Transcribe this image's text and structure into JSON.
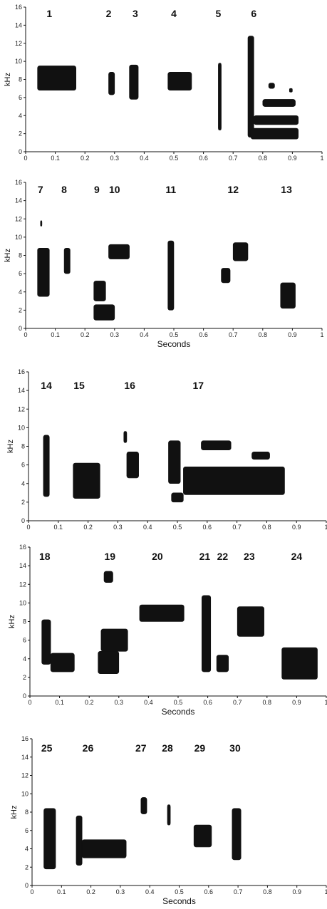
{
  "chart_data": [
    {
      "type": "spectrogram",
      "ylabel": "kHz",
      "xlabel": "",
      "xlim": [
        0,
        1
      ],
      "ylim": [
        0,
        16
      ],
      "xticks": [
        "0",
        "0.1",
        "0.2",
        "0.3",
        "0.4",
        "0.5",
        "0.6",
        "0.7",
        "0.8",
        "0.9",
        "1"
      ],
      "yticks": [
        "0",
        "2",
        "4",
        "6",
        "8",
        "10",
        "12",
        "14",
        "16"
      ],
      "syllables": [
        {
          "label": "1",
          "label_x": 0.08,
          "segments": [
            {
              "x0": 0.04,
              "x1": 0.17,
              "f0": 6.8,
              "f1": 9.5
            }
          ]
        },
        {
          "label": "2",
          "label_x": 0.28,
          "segments": [
            {
              "x0": 0.28,
              "x1": 0.3,
              "f0": 6.3,
              "f1": 8.8
            }
          ]
        },
        {
          "label": "3",
          "label_x": 0.37,
          "segments": [
            {
              "x0": 0.35,
              "x1": 0.38,
              "f0": 5.8,
              "f1": 9.6
            }
          ]
        },
        {
          "label": "4",
          "label_x": 0.5,
          "segments": [
            {
              "x0": 0.48,
              "x1": 0.56,
              "f0": 6.8,
              "f1": 8.8
            }
          ]
        },
        {
          "label": "5",
          "label_x": 0.65,
          "segments": [
            {
              "x0": 0.65,
              "x1": 0.66,
              "f0": 2.4,
              "f1": 9.8
            }
          ]
        },
        {
          "label": "6",
          "label_x": 0.77,
          "segments": [
            {
              "x0": 0.75,
              "x1": 0.77,
              "f0": 1.6,
              "f1": 12.8
            },
            {
              "x0": 0.76,
              "x1": 0.92,
              "f0": 1.4,
              "f1": 2.6
            },
            {
              "x0": 0.77,
              "x1": 0.92,
              "f0": 3.0,
              "f1": 4.0
            },
            {
              "x0": 0.8,
              "x1": 0.91,
              "f0": 5.0,
              "f1": 5.8
            },
            {
              "x0": 0.82,
              "x1": 0.84,
              "f0": 7.0,
              "f1": 7.6
            },
            {
              "x0": 0.89,
              "x1": 0.9,
              "f0": 6.6,
              "f1": 7.0
            }
          ]
        }
      ]
    },
    {
      "type": "spectrogram",
      "ylabel": "kHz",
      "xlabel": "Seconds",
      "xlim": [
        0,
        1
      ],
      "ylim": [
        0,
        16
      ],
      "xticks": [
        "0",
        "0.1",
        "0.2",
        "0.3",
        "0.4",
        "0.5",
        "0.6",
        "0.7",
        "0.8",
        "0.9",
        "1"
      ],
      "yticks": [
        "0",
        "2",
        "4",
        "6",
        "8",
        "10",
        "12",
        "14",
        "16"
      ],
      "syllables": [
        {
          "label": "7",
          "label_x": 0.05,
          "segments": [
            {
              "x0": 0.04,
              "x1": 0.08,
              "f0": 3.5,
              "f1": 8.8
            },
            {
              "x0": 0.05,
              "x1": 0.055,
              "f0": 11.2,
              "f1": 11.8
            }
          ]
        },
        {
          "label": "8",
          "label_x": 0.13,
          "segments": [
            {
              "x0": 0.13,
              "x1": 0.15,
              "f0": 6.0,
              "f1": 8.8
            }
          ]
        },
        {
          "label": "9",
          "label_x": 0.24,
          "segments": [
            {
              "x0": 0.23,
              "x1": 0.27,
              "f0": 3.0,
              "f1": 5.2
            },
            {
              "x0": 0.23,
              "x1": 0.3,
              "f0": 0.9,
              "f1": 2.6
            }
          ]
        },
        {
          "label": "10",
          "label_x": 0.3,
          "segments": [
            {
              "x0": 0.28,
              "x1": 0.35,
              "f0": 7.6,
              "f1": 9.2
            }
          ]
        },
        {
          "label": "11",
          "label_x": 0.49,
          "segments": [
            {
              "x0": 0.48,
              "x1": 0.5,
              "f0": 2.0,
              "f1": 9.6
            }
          ]
        },
        {
          "label": "12",
          "label_x": 0.7,
          "segments": [
            {
              "x0": 0.66,
              "x1": 0.69,
              "f0": 5.0,
              "f1": 6.6
            },
            {
              "x0": 0.7,
              "x1": 0.75,
              "f0": 7.4,
              "f1": 9.4
            }
          ]
        },
        {
          "label": "13",
          "label_x": 0.88,
          "segments": [
            {
              "x0": 0.86,
              "x1": 0.91,
              "f0": 2.2,
              "f1": 5.0
            }
          ]
        }
      ]
    },
    {
      "type": "spectrogram",
      "ylabel": "kHz",
      "xlabel": "",
      "xlim": [
        0,
        1
      ],
      "ylim": [
        0,
        16
      ],
      "xticks": [
        "0",
        "0.1",
        "0.2",
        "0.3",
        "0.4",
        "0.5",
        "0.6",
        "0.7",
        "0.8",
        "0.9",
        "1"
      ],
      "yticks": [
        "0",
        "2",
        "4",
        "6",
        "8",
        "10",
        "12",
        "14",
        "16"
      ],
      "syllables": [
        {
          "label": "14",
          "label_x": 0.06,
          "segments": [
            {
              "x0": 0.05,
              "x1": 0.07,
              "f0": 2.6,
              "f1": 9.2
            }
          ]
        },
        {
          "label": "15",
          "label_x": 0.17,
          "segments": [
            {
              "x0": 0.15,
              "x1": 0.24,
              "f0": 2.4,
              "f1": 6.2
            }
          ]
        },
        {
          "label": "16",
          "label_x": 0.34,
          "segments": [
            {
              "x0": 0.32,
              "x1": 0.33,
              "f0": 8.4,
              "f1": 9.6
            },
            {
              "x0": 0.33,
              "x1": 0.37,
              "f0": 4.6,
              "f1": 7.4
            }
          ]
        },
        {
          "label": "17",
          "label_x": 0.57,
          "segments": [
            {
              "x0": 0.47,
              "x1": 0.51,
              "f0": 4.0,
              "f1": 8.6
            },
            {
              "x0": 0.48,
              "x1": 0.52,
              "f0": 2.0,
              "f1": 3.0
            },
            {
              "x0": 0.52,
              "x1": 0.86,
              "f0": 2.8,
              "f1": 5.8
            },
            {
              "x0": 0.58,
              "x1": 0.68,
              "f0": 7.6,
              "f1": 8.6
            },
            {
              "x0": 0.75,
              "x1": 0.81,
              "f0": 6.6,
              "f1": 7.4
            }
          ]
        }
      ]
    },
    {
      "type": "spectrogram",
      "ylabel": "kHz",
      "xlabel": "Seconds",
      "xlim": [
        0,
        1
      ],
      "ylim": [
        0,
        16
      ],
      "xticks": [
        "0",
        "0.1",
        "0.2",
        "0.3",
        "0.4",
        "0.5",
        "0.6",
        "0.7",
        "0.8",
        "0.9",
        "1"
      ],
      "yticks": [
        "0",
        "2",
        "4",
        "6",
        "8",
        "10",
        "12",
        "14",
        "16"
      ],
      "syllables": [
        {
          "label": "18",
          "label_x": 0.05,
          "segments": [
            {
              "x0": 0.04,
              "x1": 0.07,
              "f0": 3.4,
              "f1": 8.2
            },
            {
              "x0": 0.07,
              "x1": 0.15,
              "f0": 2.6,
              "f1": 4.6
            }
          ]
        },
        {
          "label": "19",
          "label_x": 0.27,
          "segments": [
            {
              "x0": 0.25,
              "x1": 0.28,
              "f0": 12.2,
              "f1": 13.4
            },
            {
              "x0": 0.24,
              "x1": 0.33,
              "f0": 4.8,
              "f1": 7.2
            },
            {
              "x0": 0.23,
              "x1": 0.3,
              "f0": 2.4,
              "f1": 4.8
            }
          ]
        },
        {
          "label": "20",
          "label_x": 0.43,
          "segments": [
            {
              "x0": 0.37,
              "x1": 0.52,
              "f0": 8.0,
              "f1": 9.8
            }
          ]
        },
        {
          "label": "21",
          "label_x": 0.59,
          "segments": [
            {
              "x0": 0.58,
              "x1": 0.61,
              "f0": 2.6,
              "f1": 10.8
            }
          ]
        },
        {
          "label": "22",
          "label_x": 0.65,
          "segments": [
            {
              "x0": 0.63,
              "x1": 0.67,
              "f0": 2.6,
              "f1": 4.4
            }
          ]
        },
        {
          "label": "23",
          "label_x": 0.74,
          "segments": [
            {
              "x0": 0.7,
              "x1": 0.79,
              "f0": 6.4,
              "f1": 9.6
            }
          ]
        },
        {
          "label": "24",
          "label_x": 0.9,
          "segments": [
            {
              "x0": 0.85,
              "x1": 0.97,
              "f0": 1.8,
              "f1": 5.2
            }
          ]
        }
      ]
    },
    {
      "type": "spectrogram",
      "ylabel": "kHz",
      "xlabel": "Seconds",
      "xlim": [
        0,
        1
      ],
      "ylim": [
        0,
        16
      ],
      "xticks": [
        "0",
        "0.1",
        "0.2",
        "0.3",
        "0.4",
        "0.5",
        "0.6",
        "0.7",
        "0.8",
        "0.9",
        "1"
      ],
      "yticks": [
        "0",
        "2",
        "4",
        "6",
        "8",
        "10",
        "12",
        "14",
        "16"
      ],
      "syllables": [
        {
          "label": "25",
          "label_x": 0.05,
          "segments": [
            {
              "x0": 0.04,
              "x1": 0.08,
              "f0": 1.8,
              "f1": 8.4
            }
          ]
        },
        {
          "label": "26",
          "label_x": 0.19,
          "segments": [
            {
              "x0": 0.15,
              "x1": 0.17,
              "f0": 2.2,
              "f1": 7.6
            },
            {
              "x0": 0.17,
              "x1": 0.32,
              "f0": 3.0,
              "f1": 5.0
            }
          ]
        },
        {
          "label": "27",
          "label_x": 0.37,
          "segments": [
            {
              "x0": 0.37,
              "x1": 0.39,
              "f0": 7.8,
              "f1": 9.6
            }
          ]
        },
        {
          "label": "28",
          "label_x": 0.46,
          "segments": [
            {
              "x0": 0.46,
              "x1": 0.47,
              "f0": 6.6,
              "f1": 8.8
            }
          ]
        },
        {
          "label": "29",
          "label_x": 0.57,
          "segments": [
            {
              "x0": 0.55,
              "x1": 0.61,
              "f0": 4.2,
              "f1": 6.6
            }
          ]
        },
        {
          "label": "30",
          "label_x": 0.69,
          "segments": [
            {
              "x0": 0.68,
              "x1": 0.71,
              "f0": 2.8,
              "f1": 8.4
            }
          ]
        }
      ]
    }
  ]
}
